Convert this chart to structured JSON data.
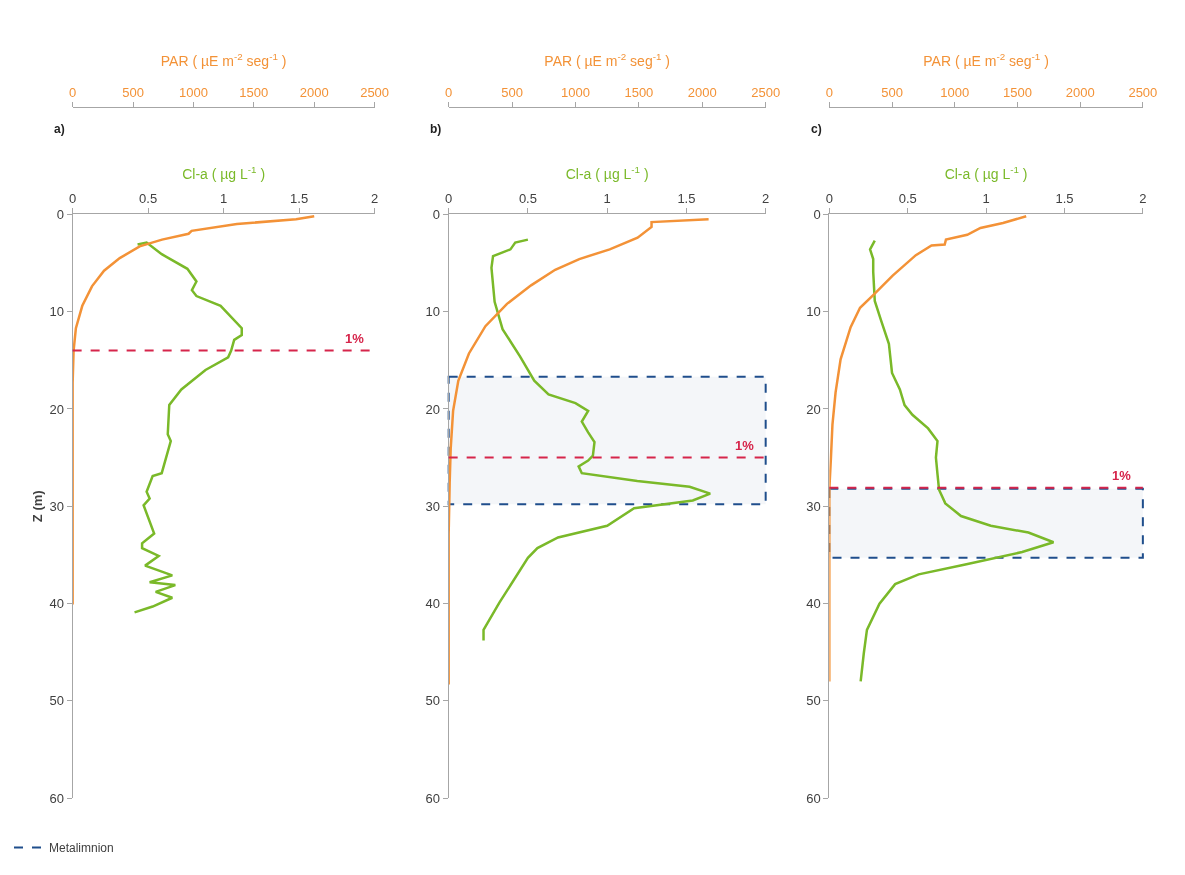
{
  "chart_data": [
    {
      "type": "line",
      "title": "a)",
      "xlabel": "Cl-a ( µg L$^{-1}$ )",
      "x2label": "PAR ( µE m$^{-2}$ seg$^{-1}$ )",
      "ylabel": "Z (m)",
      "xlim": [
        0,
        2
      ],
      "xticks": [
        0,
        0.5,
        1,
        1.5,
        2
      ],
      "x2lim": [
        0,
        2500
      ],
      "x2ticks": [
        0,
        500,
        1000,
        1500,
        2000,
        2500
      ],
      "ylim": [
        60,
        0
      ],
      "yticks": [
        0,
        10,
        20,
        30,
        40,
        50,
        60
      ],
      "grid": false,
      "line_style": "solid",
      "marker": "none",
      "series": [
        {
          "color": "#f39237",
          "axis": "x2",
          "x": [
            2000,
            1850,
            1360,
            985,
            960,
            740,
            555,
            390,
            260,
            160,
            80,
            27,
            8,
            0,
            0
          ],
          "values": [
            0.2,
            0.5,
            1.0,
            1.7,
            2.0,
            2.6,
            3.3,
            4.5,
            5.8,
            7.4,
            9.4,
            11.7,
            14.0,
            17.3,
            40.1
          ]
        },
        {
          "color": "#7ab929",
          "x": [
            0.43,
            0.49,
            0.59,
            0.76,
            0.82,
            0.79,
            0.82,
            0.98,
            1.12,
            1.12,
            1.07,
            1.05,
            1.03,
            0.88,
            0.72,
            0.64,
            0.63,
            0.65,
            0.59,
            0.53,
            0.49,
            0.51,
            0.47,
            0.54,
            0.46,
            0.46,
            0.57,
            0.48,
            0.66,
            0.51,
            0.68,
            0.55,
            0.66,
            0.53,
            0.41
          ],
          "values": [
            3.1,
            2.9,
            4.1,
            5.6,
            6.9,
            7.8,
            8.4,
            9.4,
            11.7,
            12.4,
            12.9,
            14.0,
            14.7,
            16.0,
            18.0,
            19.6,
            22.6,
            23.3,
            26.6,
            26.9,
            28.5,
            29.2,
            29.9,
            32.8,
            33.8,
            34.3,
            35.1,
            36.1,
            37.1,
            37.8,
            38.1,
            38.8,
            39.4,
            40.3,
            40.9
          ]
        }
      ],
      "ref_lines": [
        {
          "axis": "y",
          "value": 14,
          "color": "#d6254b",
          "line_style": "dashed"
        }
      ],
      "annotations": [
        {
          "text": "1%",
          "y": 14
        }
      ]
    },
    {
      "type": "line",
      "title": "b)",
      "xlabel": "Cl-a ( µg L$^{-1}$ )",
      "x2label": "PAR ( µE m$^{-2}$ seg$^{-1}$ )",
      "xlim": [
        0,
        2
      ],
      "xticks": [
        0,
        0.5,
        1,
        1.5,
        2
      ],
      "x2lim": [
        0,
        2500
      ],
      "x2ticks": [
        0,
        500,
        1000,
        1500,
        2000,
        2500
      ],
      "ylim": [
        60,
        0
      ],
      "yticks": [
        0,
        10,
        20,
        30,
        40,
        50,
        60
      ],
      "grid": false,
      "line_style": "solid",
      "marker": "none",
      "legend": "bottom left",
      "series": [
        {
          "color": "#f39237",
          "axis": "x2",
          "x": [
            2050,
            1600,
            1600,
            1490,
            1270,
            1030,
            840,
            650,
            460,
            290,
            160,
            76,
            35,
            16,
            8,
            0,
            0
          ],
          "values": [
            0.5,
            0.8,
            1.3,
            2.4,
            3.6,
            4.6,
            5.7,
            7.3,
            9.2,
            11.5,
            14.3,
            17.1,
            20.2,
            24.1,
            27.6,
            32.9,
            48.3
          ]
        },
        {
          "color": "#7ab929",
          "x": [
            0.5,
            0.42,
            0.39,
            0.28,
            0.27,
            0.29,
            0.34,
            0.45,
            0.54,
            0.63,
            0.8,
            0.88,
            0.84,
            0.88,
            0.92,
            0.91,
            0.88,
            0.82,
            0.84,
            1.19,
            1.52,
            1.65,
            1.54,
            1.17,
            1.0,
            0.69,
            0.56,
            0.5,
            0.32,
            0.22,
            0.22
          ],
          "values": [
            2.6,
            2.9,
            3.6,
            4.3,
            5.5,
            9.0,
            11.8,
            14.6,
            17.1,
            18.5,
            19.4,
            20.2,
            21.3,
            22.4,
            23.4,
            24.8,
            25.3,
            25.9,
            26.6,
            27.4,
            28.0,
            28.7,
            29.4,
            30.2,
            32.0,
            33.2,
            34.3,
            35.3,
            39.9,
            42.7,
            43.8
          ]
        }
      ],
      "ref_lines": [
        {
          "axis": "y",
          "value": 25,
          "color": "#d6254b",
          "line_style": "dashed"
        }
      ],
      "annotations": [
        {
          "text": "1%",
          "y": 25
        }
      ],
      "bands": [
        {
          "axis": "y",
          "from": 16.7,
          "to": 29.8,
          "label": "Metalimnion",
          "color": "#1f4e8c"
        }
      ]
    },
    {
      "type": "line",
      "title": "c)",
      "xlabel": "Cl-a ( µg L$^{-1}$ )",
      "x2label": "PAR ( µE m$^{-2}$ seg$^{-1}$ )",
      "xlim": [
        0,
        2
      ],
      "xticks": [
        0,
        0.5,
        1,
        1.5,
        2
      ],
      "x2lim": [
        0,
        2500
      ],
      "x2ticks": [
        0,
        500,
        1000,
        1500,
        2000,
        2500
      ],
      "ylim": [
        60,
        0
      ],
      "yticks": [
        0,
        10,
        20,
        30,
        40,
        50,
        60
      ],
      "grid": false,
      "line_style": "solid",
      "marker": "none",
      "series": [
        {
          "color": "#f39237",
          "axis": "x2",
          "x": [
            1570,
            1385,
            1205,
            1100,
            930,
            920,
            815,
            690,
            505,
            350,
            245,
            170,
            90,
            50,
            25,
            13,
            0,
            0
          ],
          "values": [
            0.2,
            0.9,
            1.4,
            2.1,
            2.6,
            3.1,
            3.2,
            4.2,
            6.3,
            8.3,
            9.6,
            11.6,
            14.9,
            18.3,
            21.6,
            25.0,
            28.3,
            48.0
          ]
        },
        {
          "color": "#7ab929",
          "x": [
            0.29,
            0.26,
            0.28,
            0.28,
            0.29,
            0.33,
            0.38,
            0.4,
            0.45,
            0.48,
            0.53,
            0.63,
            0.69,
            0.68,
            0.69,
            0.7,
            0.74,
            0.84,
            1.03,
            1.27,
            1.43,
            1.23,
            0.86,
            0.57,
            0.42,
            0.32,
            0.24,
            0.22,
            0.2
          ],
          "values": [
            2.7,
            3.6,
            4.6,
            5.9,
            8.9,
            10.9,
            13.3,
            16.3,
            18.0,
            19.6,
            20.6,
            22.0,
            23.3,
            25.0,
            26.7,
            28.3,
            29.7,
            31.0,
            32.0,
            32.7,
            33.7,
            34.7,
            36.0,
            37.0,
            38.0,
            40.0,
            42.7,
            45.1,
            48.0
          ]
        }
      ],
      "ref_lines": [
        {
          "axis": "y",
          "value": 28.1,
          "color": "#d6254b",
          "line_style": "dashed"
        }
      ],
      "annotations": [
        {
          "text": "1%",
          "y": 28.1
        }
      ],
      "bands": [
        {
          "axis": "y",
          "from": 28.2,
          "to": 35.3,
          "color": "#1f4e8c"
        }
      ]
    }
  ]
}
